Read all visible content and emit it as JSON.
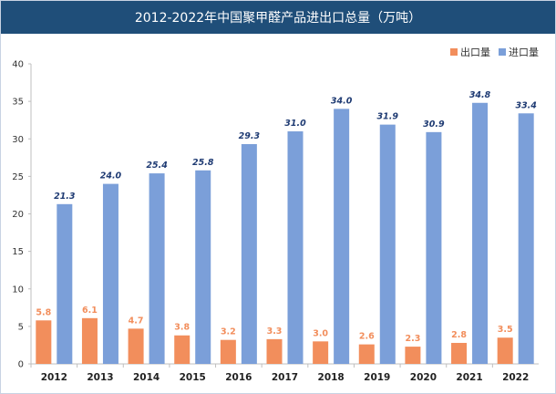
{
  "chart_data": {
    "type": "bar",
    "title": "2012-2022年中国聚甲醛产品进出口总量（万吨）",
    "categories": [
      "2012",
      "2013",
      "2014",
      "2015",
      "2016",
      "2017",
      "2018",
      "2019",
      "2020",
      "2021",
      "2022"
    ],
    "series": [
      {
        "name": "出口量",
        "color": "#f28e5c",
        "label_color": "#f28e5c",
        "values": [
          5.8,
          6.1,
          4.7,
          3.8,
          3.2,
          3.3,
          3.0,
          2.6,
          2.3,
          2.8,
          3.5
        ]
      },
      {
        "name": "进口量",
        "color": "#7b9fd9",
        "label_color": "#1f3b73",
        "values": [
          21.3,
          24.0,
          25.4,
          25.8,
          29.3,
          31.0,
          34.0,
          31.9,
          30.9,
          34.8,
          33.4
        ]
      }
    ],
    "ylim": [
      0,
      40
    ],
    "yticks": [
      0,
      5,
      10,
      15,
      20,
      25,
      30,
      35,
      40
    ],
    "legend_position": "top-right",
    "grid": false
  },
  "colors": {
    "title_bar": "#1f4e79",
    "axis": "#bfbfbf"
  }
}
